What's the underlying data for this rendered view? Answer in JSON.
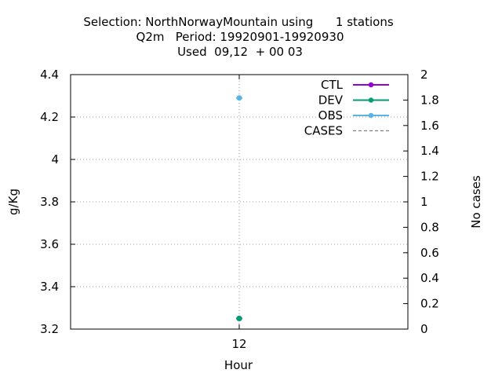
{
  "chart_data": {
    "type": "line",
    "title_lines": [
      "Selection: NorthNorwayMountain using      1 stations",
      "Q2m   Period: 19920901-19920930",
      "Used  09,12  + 00 03"
    ],
    "xlabel": "Hour",
    "ylabel": "g/Kg",
    "y2label": "No cases",
    "categories": [
      "12"
    ],
    "ylim": [
      3.2,
      4.4
    ],
    "yticks": [
      "3.2",
      "3.4",
      "3.6",
      "3.8",
      "4",
      "4.2",
      "4.4"
    ],
    "y2lim": [
      0,
      2
    ],
    "y2ticks": [
      "0",
      "0.2",
      "0.4",
      "0.6",
      "0.8",
      "1",
      "1.2",
      "1.4",
      "1.6",
      "1.8",
      "2"
    ],
    "grid": true,
    "legend_position": "top-right",
    "series": [
      {
        "name": "CTL",
        "color": "#9400d3",
        "values": [
          3.25
        ],
        "axis": "y"
      },
      {
        "name": "DEV",
        "color": "#009e73",
        "values": [
          3.25
        ],
        "axis": "y"
      },
      {
        "name": "OBS",
        "color": "#56b4e9",
        "values": [
          4.29
        ],
        "axis": "y"
      },
      {
        "name": "CASES",
        "color": "#808080",
        "values": [
          null
        ],
        "axis": "y2",
        "dashed": true
      }
    ]
  }
}
